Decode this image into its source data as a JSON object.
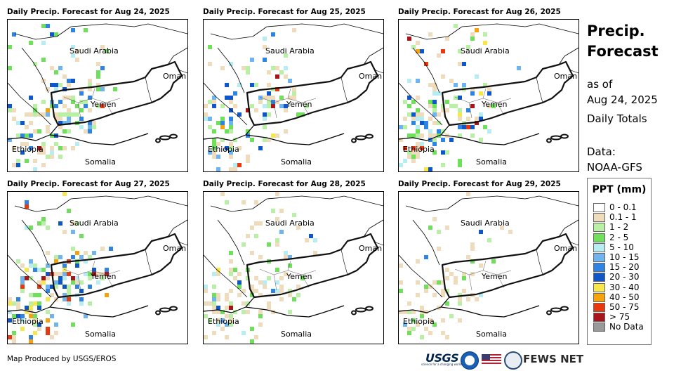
{
  "panels": [
    {
      "title": "Daily Precip. Forecast for Aug 24, 2025",
      "intensity": "moderate"
    },
    {
      "title": "Daily Precip. Forecast for Aug 25, 2025",
      "intensity": "moderate"
    },
    {
      "title": "Daily Precip. Forecast for Aug 26, 2025",
      "intensity": "heavy"
    },
    {
      "title": "Daily Precip. Forecast for Aug 27, 2025",
      "intensity": "heaviest"
    },
    {
      "title": "Daily Precip. Forecast for Aug 28, 2025",
      "intensity": "light"
    },
    {
      "title": "Daily Precip. Forecast for Aug 29, 2025",
      "intensity": "lightest"
    }
  ],
  "map_labels": {
    "saudi": "Saudi Arabia",
    "oman": "Oman",
    "yemen": "Yemen",
    "ethiopia": "Ethiopia",
    "somalia": "Somalia"
  },
  "side": {
    "title_line1": "Precip.",
    "title_line2": "Forecast",
    "asof": "as of",
    "date": "Aug 24, 2025",
    "totals": "Daily Totals",
    "data_label": "Data:",
    "data_source": "NOAA-GFS"
  },
  "legend": {
    "title": "PPT (mm)",
    "items": [
      {
        "label": "0 - 0.1",
        "color": "#ffffff"
      },
      {
        "label": "0.1 - 1",
        "color": "#efdcbc"
      },
      {
        "label": "1 - 2",
        "color": "#b9f0a6"
      },
      {
        "label": "2 - 5",
        "color": "#6fdf5c"
      },
      {
        "label": "5 - 10",
        "color": "#b7ecf2"
      },
      {
        "label": "10 - 15",
        "color": "#6fb3ef"
      },
      {
        "label": "15 - 20",
        "color": "#2f84e3"
      },
      {
        "label": "20 - 30",
        "color": "#0f57c8"
      },
      {
        "label": "30 - 40",
        "color": "#f7e64c"
      },
      {
        "label": "40 - 50",
        "color": "#f5a20c"
      },
      {
        "label": "50 - 75",
        "color": "#e8380d"
      },
      {
        "label": "> 75",
        "color": "#a8141a"
      },
      {
        "label": "No Data",
        "color": "#999999"
      }
    ]
  },
  "footer": {
    "credit": "Map Produced by USGS/EROS",
    "usgs": "USGS",
    "usgs_tagline": "science for a changing world",
    "fews": "FEWS NET"
  }
}
